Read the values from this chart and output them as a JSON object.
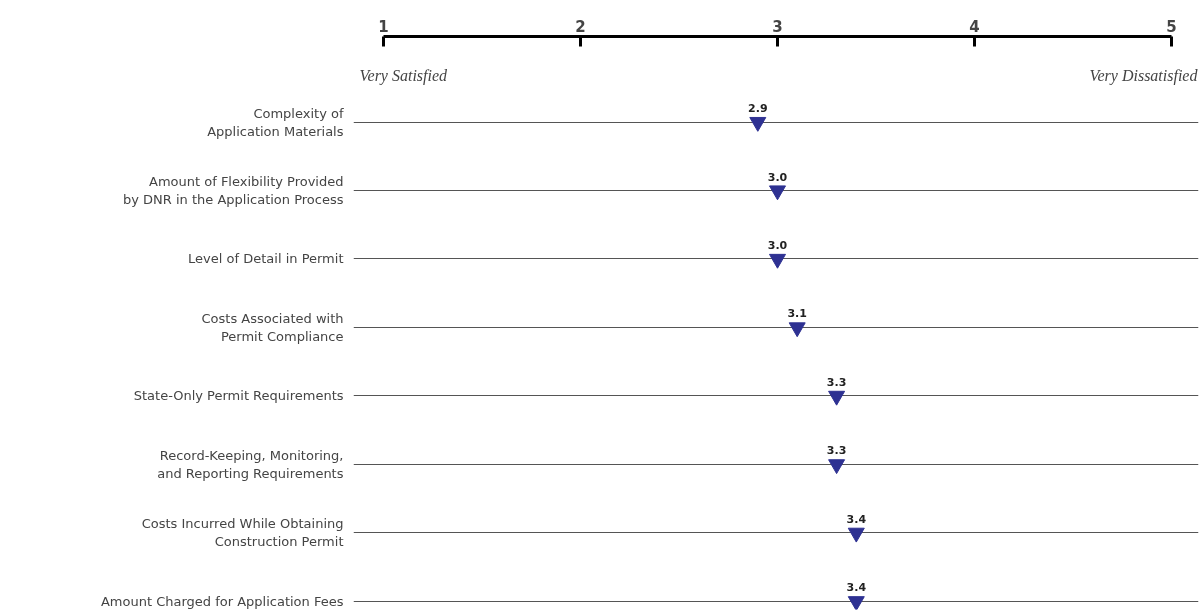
{
  "chart_data": {
    "type": "scatter",
    "orientation": "horizontal",
    "categories": [
      "Complexity of\nApplication Materials",
      "Amount of Flexibility Provided\nby DNR in the Application Process",
      "Level of Detail in Permit",
      "Costs Associated with\nPermit Compliance",
      "State-Only Permit Requirements",
      "Record-Keeping, Monitoring,\nand Reporting Requirements",
      "Costs Incurred While Obtaining\nConstruction Permit",
      "Amount Charged for Application Fees"
    ],
    "values": [
      2.9,
      3.0,
      3.0,
      3.1,
      3.3,
      3.3,
      3.4,
      3.4
    ],
    "value_labels": [
      "2.9",
      "3.0",
      "3.0",
      "3.1",
      "3.3",
      "3.3",
      "3.4",
      "3.4"
    ],
    "color": "#2e3192",
    "marker": "triangle",
    "xlim": [
      1,
      5
    ],
    "xticks": [
      1,
      2,
      3,
      4,
      5
    ],
    "grid": "y",
    "annotations": [
      "Very Satisfied",
      "Very Dissatisfied"
    ]
  }
}
